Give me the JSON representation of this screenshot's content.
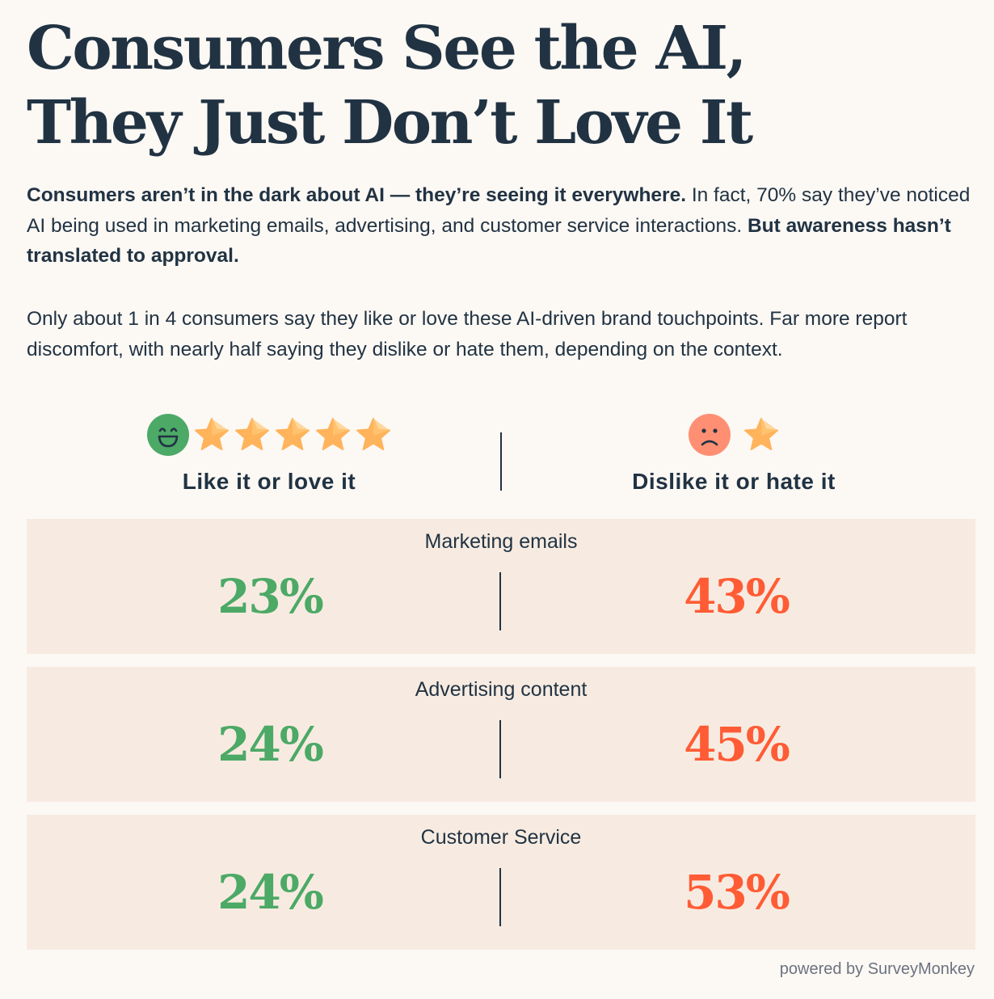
{
  "title": {
    "line1": "Consumers See the AI,",
    "line2": "They Just Don’t Love It"
  },
  "intro": {
    "bold1": "Consumers aren’t in the dark about AI — they’re seeing it everywhere.",
    "text1": " In fact, 70% say they’ve noticed AI being used in marketing emails, advertising, and customer service interactions. ",
    "bold2": "But awareness hasn’t translated to approval.",
    "para2": "Only about 1 in 4 consumers say they like or love these AI-driven brand touchpoints. Far more report discomfort, with nearly half saying they dislike or hate them, depending on the context."
  },
  "columns": {
    "like": {
      "label": "Like it or love it",
      "icon": "smiling-face-icon",
      "stars": 5,
      "color": "#4ca966"
    },
    "dislike": {
      "label": "Dislike it or hate it",
      "icon": "frowning-face-icon",
      "stars": 1,
      "color": "#ff5c35"
    }
  },
  "chart_data": {
    "type": "table",
    "categories": [
      "Marketing emails",
      "Advertising content",
      "Customer Service"
    ],
    "series": [
      {
        "name": "Like it or love it",
        "values": [
          23,
          24,
          24
        ],
        "labels": [
          "23%",
          "24%",
          "24%"
        ]
      },
      {
        "name": "Dislike it or hate it",
        "values": [
          43,
          45,
          53
        ],
        "labels": [
          "43%",
          "45%",
          "53%"
        ]
      }
    ],
    "unit": "%"
  },
  "footer": "powered by SurveyMonkey"
}
